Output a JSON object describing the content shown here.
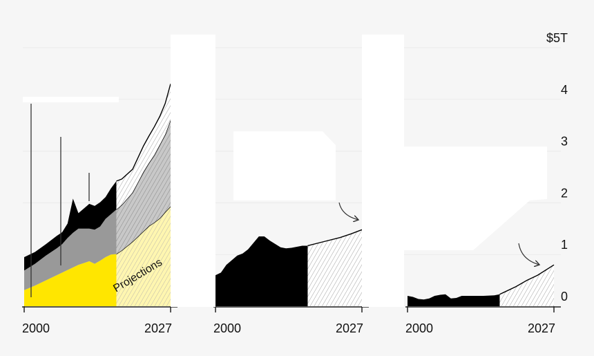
{
  "chart_data": [
    {
      "type": "area",
      "stacked": true,
      "projection_start": 2017,
      "projection_label": "Projections",
      "x": [
        2000,
        2002,
        2004,
        2006,
        2007,
        2008,
        2009,
        2010,
        2012,
        2013,
        2014,
        2015,
        2016,
        2017,
        2018,
        2020,
        2022,
        2023,
        2024,
        2025,
        2026,
        2027
      ],
      "series": [
        {
          "name": "yellow",
          "color": "#ffe600",
          "values": [
            0.31,
            0.4,
            0.5,
            0.6,
            0.65,
            0.7,
            0.75,
            0.8,
            0.87,
            0.82,
            0.88,
            0.95,
            1.0,
            1.01,
            1.08,
            1.25,
            1.45,
            1.55,
            1.62,
            1.7,
            1.82,
            1.93
          ]
        },
        {
          "name": "gray",
          "color": "#999999",
          "values": [
            0.38,
            0.42,
            0.48,
            0.52,
            0.55,
            0.62,
            0.67,
            0.7,
            0.63,
            0.66,
            0.66,
            0.74,
            0.78,
            0.86,
            0.88,
            0.95,
            1.15,
            1.22,
            1.3,
            1.42,
            1.5,
            1.67
          ]
        },
        {
          "name": "black",
          "color": "#000000",
          "values": [
            0.26,
            0.23,
            0.22,
            0.24,
            0.23,
            0.28,
            0.66,
            0.3,
            0.48,
            0.46,
            0.47,
            0.42,
            0.5,
            0.55,
            0.5,
            0.45,
            0.5,
            0.52,
            0.55,
            0.55,
            0.6,
            0.7
          ]
        }
      ],
      "xticks": [
        "2000",
        "2027"
      ]
    },
    {
      "type": "area",
      "projection_start": 2017,
      "x": [
        2000,
        2001,
        2002,
        2004,
        2005,
        2006,
        2008,
        2009,
        2010,
        2012,
        2013,
        2014,
        2015,
        2016,
        2017,
        2020,
        2023,
        2025,
        2027
      ],
      "series": [
        {
          "name": "black",
          "color": "#000000",
          "values": [
            0.6,
            0.65,
            0.8,
            0.98,
            1.02,
            1.1,
            1.35,
            1.35,
            1.27,
            1.14,
            1.12,
            1.13,
            1.15,
            1.17,
            1.17,
            1.25,
            1.33,
            1.4,
            1.48
          ]
        }
      ],
      "xticks": [
        "2000",
        "2027"
      ]
    },
    {
      "type": "area",
      "projection_start": 2017,
      "x": [
        2000,
        2001,
        2002,
        2003,
        2004,
        2005,
        2006,
        2007,
        2008,
        2009,
        2010,
        2012,
        2014,
        2016,
        2017,
        2018,
        2020,
        2022,
        2024,
        2027
      ],
      "series": [
        {
          "name": "black",
          "color": "#000000",
          "values": [
            0.2,
            0.18,
            0.14,
            0.13,
            0.15,
            0.2,
            0.22,
            0.23,
            0.15,
            0.16,
            0.2,
            0.2,
            0.2,
            0.21,
            0.23,
            0.28,
            0.38,
            0.5,
            0.6,
            0.8
          ]
        }
      ],
      "xticks": [
        "2000",
        "2027"
      ]
    }
  ],
  "y_axis": {
    "ticks": [
      "0",
      "1",
      "2",
      "3",
      "4",
      "$5T"
    ],
    "range": [
      0,
      5
    ]
  }
}
